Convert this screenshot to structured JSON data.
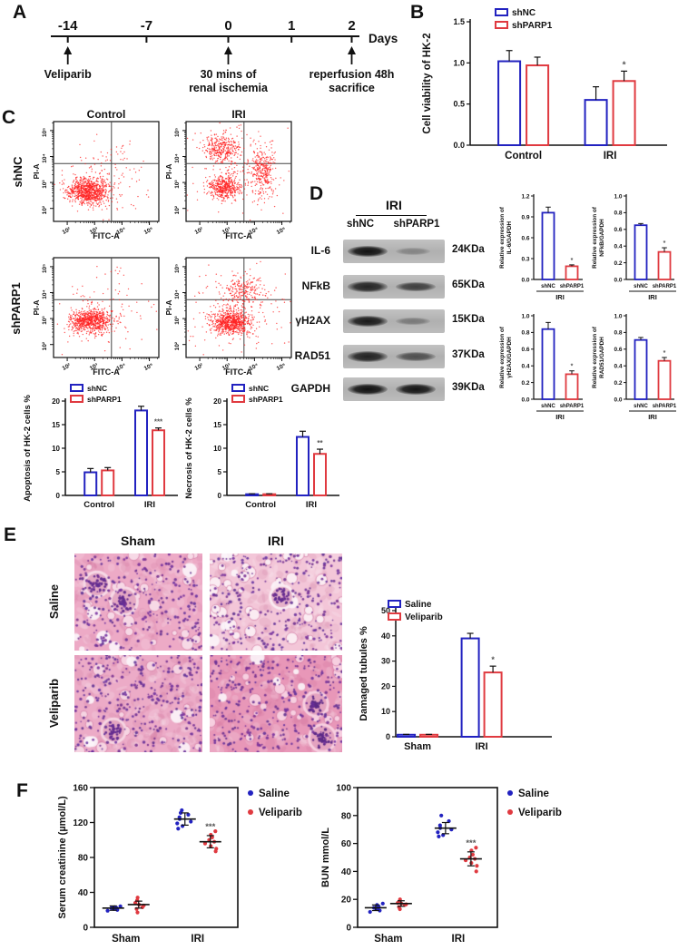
{
  "figure": {
    "panel_labels": {
      "A": "A",
      "B": "B",
      "C": "C",
      "D": "D",
      "E": "E",
      "F": "F"
    }
  },
  "colors": {
    "blue": "#2222c0",
    "red": "#e03a40",
    "flow_dot": "#ff2222",
    "sig": "#555555",
    "black": "#111111"
  },
  "panel_a": {
    "days_label": "Days",
    "ticks": [
      "-14",
      "-7",
      "0",
      "1",
      "2"
    ],
    "events": [
      {
        "at": "-14",
        "lines": [
          "Veliparib"
        ]
      },
      {
        "at": "0",
        "lines": [
          "30 mins of",
          "renal ischemia"
        ]
      },
      {
        "at": "2",
        "lines": [
          "reperfusion 48h",
          "sacrifice"
        ]
      }
    ]
  },
  "panel_c": {
    "col_headers": [
      "Control",
      "IRI"
    ],
    "row_labels": [
      "shNC",
      "shPARP1"
    ]
  },
  "panel_d": {
    "header": "IRI",
    "lanes": [
      "shNC",
      "shPARP1"
    ],
    "blots": [
      {
        "protein": "IL-6",
        "kda": "24KDa",
        "intensities": [
          1.0,
          0.28
        ]
      },
      {
        "protein": "NFkB",
        "kda": "65KDa",
        "intensities": [
          0.88,
          0.72
        ]
      },
      {
        "protein": "γH2AX",
        "kda": "15KDa",
        "intensities": [
          0.95,
          0.35
        ]
      },
      {
        "protein": "RAD51",
        "kda": "37KDa",
        "intensities": [
          0.9,
          0.62
        ]
      },
      {
        "protein": "GAPDH",
        "kda": "39KDa",
        "intensities": [
          1.0,
          0.98
        ]
      }
    ]
  },
  "panel_e": {
    "col_headers": [
      "Sham",
      "IRI"
    ],
    "row_labels": [
      "Saline",
      "Veliparib"
    ],
    "tiles": [
      {
        "row": "Saline",
        "col": "Sham",
        "base": "#edaac6",
        "pale": "#f7d9e6",
        "nucleus": "#652d90",
        "nuclei": 280,
        "lumens": 24,
        "glom": 2,
        "seed": 11
      },
      {
        "row": "Saline",
        "col": "IRI",
        "base": "#f3c6d8",
        "pale": "#fbecf2",
        "nucleus": "#652d90",
        "nuclei": 300,
        "lumens": 40,
        "glom": 1,
        "seed": 22
      },
      {
        "row": "Veliparib",
        "col": "Sham",
        "base": "#ecabc7",
        "pale": "#f6d4e2",
        "nucleus": "#652d90",
        "nuclei": 310,
        "lumens": 20,
        "glom": 1,
        "seed": 33
      },
      {
        "row": "Veliparib",
        "col": "IRI",
        "base": "#e897b8",
        "pale": "#f7cfe0",
        "nucleus": "#5c2a86",
        "nuclei": 320,
        "lumens": 28,
        "glom": 2,
        "seed": 44
      }
    ]
  },
  "chart_data": [
    {
      "type": "bar",
      "ylabel": "Cell viability of HK-2",
      "ylim": [
        0,
        1.5
      ],
      "yticks": [
        "0.0",
        "0.5",
        "1.0",
        "1.5"
      ],
      "categories": [
        "Control",
        "IRI"
      ],
      "series": [
        {
          "name": "shNC",
          "color": "blue",
          "values": [
            1.02,
            0.55
          ],
          "errors": [
            0.13,
            0.16
          ]
        },
        {
          "name": "shPARP1",
          "color": "red",
          "values": [
            0.97,
            0.78
          ],
          "errors": [
            0.1,
            0.12
          ]
        }
      ],
      "sig": [
        {
          "cat": 1,
          "series": 1,
          "label": "*"
        }
      ],
      "legend": true
    },
    {
      "type": "bar",
      "ylabel": "Apoptosis of HK-2 cells %",
      "ylim": [
        0,
        20
      ],
      "yticks": [
        "0",
        "5",
        "10",
        "15",
        "20"
      ],
      "categories": [
        "Control",
        "IRI"
      ],
      "series": [
        {
          "name": "shNC",
          "color": "blue",
          "values": [
            4.9,
            18.0
          ],
          "errors": [
            0.8,
            0.9
          ]
        },
        {
          "name": "shPARP1",
          "color": "red",
          "values": [
            5.3,
            13.8
          ],
          "errors": [
            0.6,
            0.5
          ]
        }
      ],
      "sig": [
        {
          "cat": 1,
          "series": 1,
          "label": "***"
        }
      ],
      "legend": true
    },
    {
      "type": "bar",
      "ylabel": "Necrosis of HK-2 cells %",
      "ylim": [
        0,
        20
      ],
      "yticks": [
        "0",
        "5",
        "10",
        "15",
        "20"
      ],
      "categories": [
        "Control",
        "IRI"
      ],
      "series": [
        {
          "name": "shNC",
          "color": "blue",
          "values": [
            0.25,
            12.4
          ],
          "errors": [
            0.1,
            1.2
          ]
        },
        {
          "name": "shPARP1",
          "color": "red",
          "values": [
            0.25,
            8.8
          ],
          "errors": [
            0.1,
            1.0
          ]
        }
      ],
      "sig": [
        {
          "cat": 1,
          "series": 1,
          "label": "**"
        }
      ],
      "legend": true
    },
    {
      "type": "bar2",
      "ylabel_lines": [
        "Relative expression of",
        "IL-6/GAPDH"
      ],
      "ylim": [
        0,
        1.2
      ],
      "yticks": [
        "0.0",
        "0.3",
        "0.6",
        "0.9",
        "1.2"
      ],
      "group_label": "IRI",
      "bars": [
        {
          "label": "shNC",
          "color": "blue",
          "value": 0.96,
          "err": 0.08
        },
        {
          "label": "shPARP1",
          "color": "red",
          "value": 0.19,
          "err": 0.02,
          "sig": "*"
        }
      ]
    },
    {
      "type": "bar2",
      "ylabel_lines": [
        "Relative expression of",
        "NFkB/GAPDH"
      ],
      "ylim": [
        0,
        1.0
      ],
      "yticks": [
        "0.0",
        "0.2",
        "0.4",
        "0.6",
        "0.8",
        "1.0"
      ],
      "group_label": "IRI",
      "bars": [
        {
          "label": "shNC",
          "color": "blue",
          "value": 0.65,
          "err": 0.02
        },
        {
          "label": "shPARP1",
          "color": "red",
          "value": 0.33,
          "err": 0.05,
          "sig": "*"
        }
      ]
    },
    {
      "type": "bar2",
      "ylabel_lines": [
        "Relative expression of",
        "γH2AX/GAPDH"
      ],
      "ylim": [
        0,
        1.0
      ],
      "yticks": [
        "0.0",
        "0.2",
        "0.4",
        "0.6",
        "0.8",
        "1.0"
      ],
      "group_label": "IRI",
      "bars": [
        {
          "label": "shNC",
          "color": "blue",
          "value": 0.84,
          "err": 0.08
        },
        {
          "label": "shPARP1",
          "color": "red",
          "value": 0.3,
          "err": 0.04,
          "sig": "*"
        }
      ]
    },
    {
      "type": "bar2",
      "ylabel_lines": [
        "Relative expression of",
        "RAD51/GAPDH"
      ],
      "ylim": [
        0,
        1.0
      ],
      "yticks": [
        "0.0",
        "0.2",
        "0.4",
        "0.6",
        "0.8",
        "1.0"
      ],
      "group_label": "IRI",
      "bars": [
        {
          "label": "shNC",
          "color": "blue",
          "value": 0.71,
          "err": 0.03
        },
        {
          "label": "shPARP1",
          "color": "red",
          "value": 0.46,
          "err": 0.04,
          "sig": "*"
        }
      ]
    },
    {
      "type": "bar",
      "ylabel": "Damaged tubules %",
      "ylim": [
        0,
        50
      ],
      "yticks": [
        "0",
        "10",
        "20",
        "30",
        "40",
        "50"
      ],
      "categories": [
        "Sham",
        "IRI"
      ],
      "series": [
        {
          "name": "Saline",
          "color": "blue",
          "values": [
            0.8,
            39.0
          ],
          "errors": [
            0.15,
            2.0
          ]
        },
        {
          "name": "Veliparib",
          "color": "red",
          "values": [
            0.8,
            25.5
          ],
          "errors": [
            0.15,
            2.5
          ]
        }
      ],
      "sig": [
        {
          "cat": 1,
          "series": 1,
          "label": "*"
        }
      ],
      "legend": true
    },
    {
      "type": "scatter",
      "ylabel": "Serum creatinine (µmol/L)",
      "ylim": [
        0,
        160
      ],
      "yticks": [
        "0",
        "40",
        "80",
        "120",
        "160"
      ],
      "categories": [
        "Sham",
        "IRI"
      ],
      "series": [
        {
          "name": "Saline",
          "color": "blue",
          "points": [
            [
              19,
              20,
              21,
              21.5,
              22,
              22.5,
              23,
              24
            ],
            [
              113,
              116,
              119,
              121,
              124,
              126,
              129,
              131,
              134
            ]
          ],
          "mean": [
            22,
            124
          ],
          "err": [
            2.5,
            7
          ]
        },
        {
          "name": "Veliparib",
          "color": "red",
          "points": [
            [
              17,
              21,
              23,
              25,
              26,
              28,
              31,
              34
            ],
            [
              87,
              90,
              93,
              96,
              98,
              100,
              103,
              106,
              110
            ]
          ],
          "mean": [
            26,
            98
          ],
          "err": [
            4,
            7
          ]
        }
      ],
      "sig": [
        {
          "cat": 1,
          "series": 1,
          "label": "***"
        }
      ],
      "legend": true
    },
    {
      "type": "scatter",
      "ylabel": "BUN mmol/L",
      "ylim": [
        0,
        100
      ],
      "yticks": [
        "0",
        "20",
        "40",
        "60",
        "80",
        "100"
      ],
      "categories": [
        "Sham",
        "IRI"
      ],
      "series": [
        {
          "name": "Saline",
          "color": "blue",
          "points": [
            [
              11,
              12,
              13,
              13.5,
              14,
              15,
              16,
              17
            ],
            [
              65,
              66,
              68,
              70,
              71,
              73,
              76,
              80
            ]
          ],
          "mean": [
            14,
            71
          ],
          "err": [
            2,
            4
          ]
        },
        {
          "name": "Veliparib",
          "color": "red",
          "points": [
            [
              13,
              14.5,
              16,
              16.5,
              17,
              17.5,
              18.5,
              20
            ],
            [
              40,
              44,
              46,
              48,
              49,
              50,
              52,
              55,
              57
            ]
          ],
          "mean": [
            17,
            49
          ],
          "err": [
            2,
            5
          ]
        }
      ],
      "sig": [
        {
          "cat": 1,
          "series": 1,
          "label": "***"
        }
      ],
      "legend": true
    },
    {
      "type": "flow",
      "xlabel": "FITC-A",
      "ylabel": "PI-A",
      "tick_labels": [
        "10²",
        "10³",
        "10⁴",
        "10⁵"
      ],
      "cross": [
        0.55,
        0.42
      ],
      "clusters": [
        {
          "cx": 0.33,
          "cy": 0.7,
          "sx": 0.1,
          "sy": 0.065,
          "n": 850
        },
        {
          "cx": 0.5,
          "cy": 0.52,
          "sx": 0.22,
          "sy": 0.18,
          "n": 130
        }
      ]
    },
    {
      "type": "flow",
      "xlabel": "FITC-A",
      "ylabel": "PI-A",
      "tick_labels": [
        "10²",
        "10³",
        "10⁴",
        "10⁵"
      ],
      "cross": [
        0.55,
        0.42
      ],
      "clusters": [
        {
          "cx": 0.36,
          "cy": 0.66,
          "sx": 0.075,
          "sy": 0.055,
          "n": 450
        },
        {
          "cx": 0.34,
          "cy": 0.27,
          "sx": 0.085,
          "sy": 0.075,
          "n": 330
        },
        {
          "cx": 0.73,
          "cy": 0.5,
          "sx": 0.055,
          "sy": 0.12,
          "n": 300
        },
        {
          "cx": 0.55,
          "cy": 0.5,
          "sx": 0.25,
          "sy": 0.24,
          "n": 160
        }
      ]
    },
    {
      "type": "flow",
      "xlabel": "FITC-A",
      "ylabel": "PI-A",
      "tick_labels": [
        "10²",
        "10³",
        "10⁴",
        "10⁵"
      ],
      "cross": [
        0.55,
        0.42
      ],
      "clusters": [
        {
          "cx": 0.35,
          "cy": 0.64,
          "sx": 0.095,
          "sy": 0.06,
          "n": 750
        },
        {
          "cx": 0.5,
          "cy": 0.5,
          "sx": 0.24,
          "sy": 0.2,
          "n": 110
        }
      ]
    },
    {
      "type": "flow",
      "xlabel": "FITC-A",
      "ylabel": "PI-A",
      "tick_labels": [
        "10²",
        "10³",
        "10⁴",
        "10⁵"
      ],
      "cross": [
        0.55,
        0.42
      ],
      "clusters": [
        {
          "cx": 0.43,
          "cy": 0.65,
          "sx": 0.095,
          "sy": 0.06,
          "n": 750
        },
        {
          "cx": 0.54,
          "cy": 0.33,
          "sx": 0.085,
          "sy": 0.07,
          "n": 200
        },
        {
          "cx": 0.55,
          "cy": 0.52,
          "sx": 0.26,
          "sy": 0.22,
          "n": 170
        }
      ]
    }
  ]
}
